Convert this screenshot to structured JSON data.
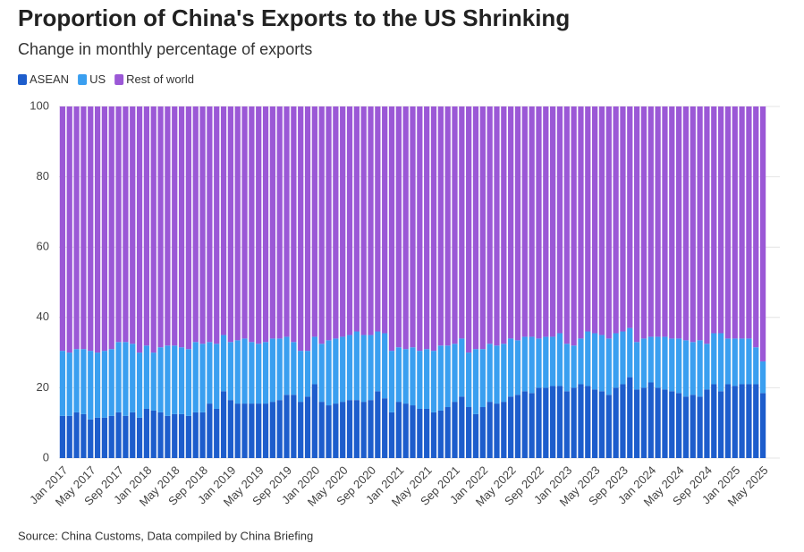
{
  "chart_data": {
    "type": "stacked-bar",
    "title": "Proportion of China's Exports to the US Shrinking",
    "subtitle": "Change in monthly percentage of exports",
    "source": "Source: China Customs, Data compiled by China Briefing",
    "categories": [
      "Jan 2017",
      null,
      null,
      null,
      "May 2017",
      null,
      null,
      null,
      "Sep 2017",
      null,
      null,
      null,
      "Jan 2018",
      null,
      null,
      null,
      "May 2018",
      null,
      null,
      null,
      "Sep 2018",
      null,
      null,
      null,
      "Jan 2019",
      null,
      null,
      null,
      "May 2019",
      null,
      null,
      null,
      "Sep 2019",
      null,
      null,
      null,
      "Jan 2020",
      null,
      null,
      null,
      "May 2020",
      null,
      null,
      null,
      "Sep 2020",
      null,
      null,
      null,
      "Jan 2021",
      null,
      null,
      null,
      "May 2021",
      null,
      null,
      null,
      "Sep 2021",
      null,
      null,
      null,
      "Jan 2022",
      null,
      null,
      null,
      "May 2022",
      null,
      null,
      null,
      "Sep 2022",
      null,
      null,
      null,
      "Jan 2023",
      null,
      null,
      null,
      "May 2023",
      null,
      null,
      null,
      "Sep 2023",
      null,
      null,
      null,
      "Jan 2024",
      null,
      null,
      null,
      "May 2024",
      null,
      null,
      null,
      "Sep 2024",
      null,
      null,
      null,
      "Jan 2025",
      null,
      null,
      null,
      "May 2025"
    ],
    "series": [
      {
        "name": "ASEAN",
        "color": "#1d5dcc",
        "values": [
          12,
          12,
          13,
          12.5,
          11,
          11.5,
          11.5,
          12,
          13,
          12,
          13,
          11.5,
          14,
          13.5,
          13,
          12,
          12.5,
          12.5,
          12,
          13,
          13,
          15.5,
          14,
          19,
          16.5,
          15.5,
          15.5,
          15.5,
          15.5,
          15.5,
          16,
          16.5,
          18,
          18,
          16,
          17.5,
          21,
          16,
          15,
          15.5,
          16,
          16.5,
          16.5,
          16,
          16.5,
          19,
          17,
          13,
          16,
          15.5,
          15,
          14,
          14,
          13,
          13.5,
          14.5,
          16,
          17.5,
          14.5,
          12.5,
          14.5,
          16,
          15.5,
          16,
          17.5,
          18,
          19,
          18.5,
          20,
          20,
          20.5,
          20.5,
          19,
          20,
          21,
          20.5,
          19.5,
          19,
          18,
          20,
          21,
          23,
          19.5,
          20,
          21.5,
          20,
          19.5,
          19,
          18.5,
          17.5,
          18,
          17.5,
          19.5,
          21,
          19,
          21,
          20.5,
          21,
          21,
          21,
          18.5
        ]
      },
      {
        "name": "US",
        "color": "#3a9ff0",
        "values": [
          18.5,
          18,
          18,
          18.5,
          19.5,
          18.5,
          19,
          19,
          20,
          21,
          19.5,
          18.5,
          18,
          16.5,
          18.5,
          20,
          19.5,
          19,
          19,
          20,
          19.5,
          17.5,
          18.5,
          16,
          16.5,
          18,
          18.5,
          17.5,
          17,
          17.5,
          18,
          17.5,
          16.5,
          15,
          14.5,
          13,
          13.5,
          16.5,
          18.5,
          18.5,
          18.5,
          18.5,
          19.5,
          19,
          18.5,
          17,
          18.5,
          17.5,
          15.5,
          15.5,
          16.5,
          16.5,
          17,
          17.5,
          18.5,
          17.5,
          16.5,
          16.5,
          15.5,
          18.5,
          16.5,
          16.5,
          16.5,
          16.5,
          16.5,
          15.5,
          15.5,
          16,
          14,
          14.5,
          14,
          15,
          13.5,
          12,
          13,
          15.5,
          16,
          16,
          16,
          15.5,
          15,
          14,
          13.5,
          14,
          13,
          14.5,
          15,
          15,
          15.5,
          16,
          15,
          16,
          13,
          14.5,
          16.5,
          13,
          13.5,
          13,
          13,
          10.5,
          9
        ]
      },
      {
        "name": "Rest of world",
        "color": "#9b58d6",
        "values": [
          69.5,
          70,
          69,
          69,
          69.5,
          70,
          69.5,
          69,
          67,
          67,
          67.5,
          70,
          68,
          70,
          68.5,
          68,
          68,
          68.5,
          69,
          67,
          67.5,
          67,
          67.5,
          65,
          67,
          66.5,
          66,
          67,
          67.5,
          67,
          66,
          66,
          65.5,
          67,
          69.5,
          69.5,
          65.5,
          67.5,
          66.5,
          66,
          65.5,
          65,
          64,
          65,
          65,
          64,
          64.5,
          69.5,
          68.5,
          69,
          68.5,
          69.5,
          69,
          69.5,
          68,
          68,
          67.5,
          66,
          70,
          69,
          69,
          67.5,
          68,
          67.5,
          66,
          66.5,
          65.5,
          65.5,
          66,
          65.5,
          65.5,
          64.5,
          67.5,
          68,
          66,
          64,
          64.5,
          65,
          66,
          64.5,
          64,
          63,
          67,
          66,
          65.5,
          65.5,
          65.5,
          66,
          66,
          66.5,
          67,
          66.5,
          67.5,
          64.5,
          64.5,
          66,
          66,
          66,
          66,
          68.5,
          72.5
        ]
      }
    ],
    "ylim": [
      0,
      100
    ],
    "yticks": [
      0,
      20,
      40,
      60,
      80,
      100
    ],
    "grid": true
  }
}
